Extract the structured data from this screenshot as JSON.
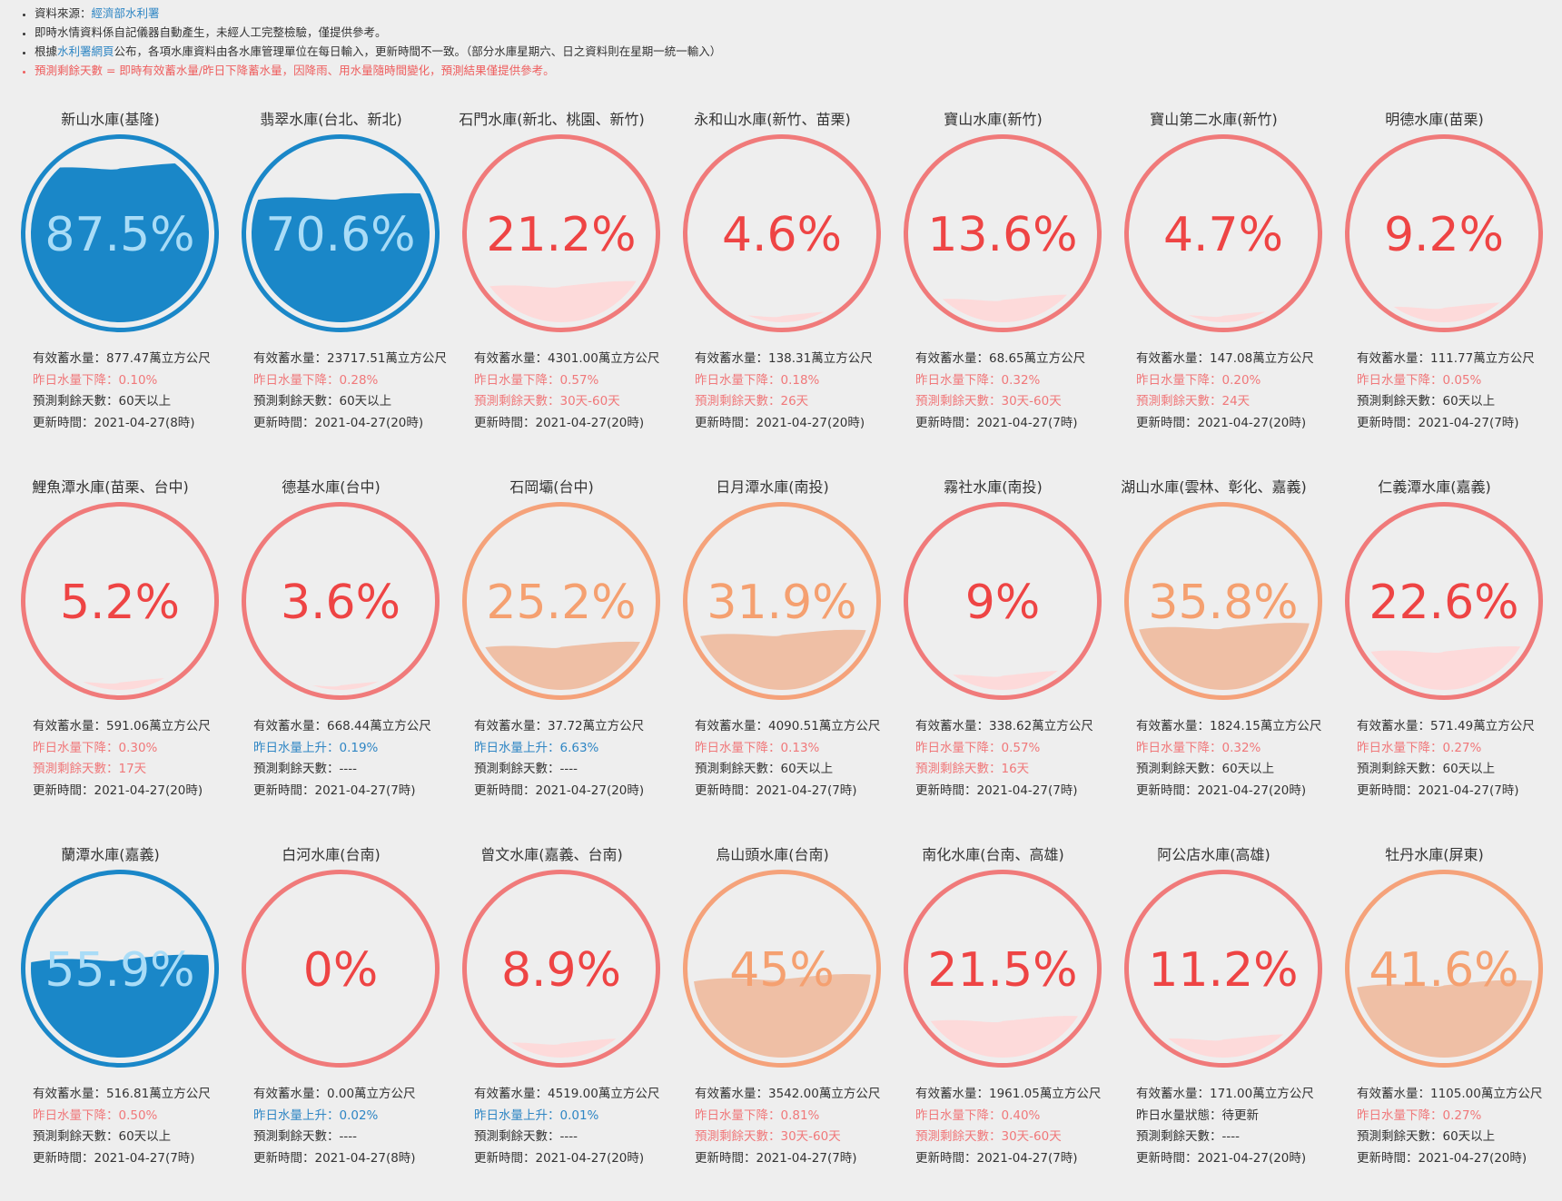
{
  "notes": {
    "source_label": "資料來源：",
    "source_link": "經濟部水利署",
    "line2": "即時水情資料係自記儀器自動產生，未經人工完整檢驗，僅提供參考。",
    "line3_pre": "根據",
    "line3_link": "水利署網頁",
    "line3_post": "公布，各項水庫資料由各水庫管理單位在每日輸入，更新時間不一致。（部分水庫星期六、日之資料則在星期一統一輸入）",
    "line4": "預測剩餘天數 = 即時有效蓄水量/昨日下降蓄水量，因降雨、用水量隨時間變化，預測結果僅提供參考。"
  },
  "colors": {
    "blue_fill": "#1a87c8",
    "blue_ring": "#1a87c8",
    "red_ring": "#f07a7a",
    "red_text": "#ee4444",
    "red_fill": "#fddada",
    "orange_ring": "#f5a27a",
    "orange_text": "#f5a070",
    "orange_fill": "#efbfa5",
    "light_blue_text": "#a9dcf7"
  },
  "reservoirs": [
    {
      "name": "新山水庫(基隆)",
      "percent": "87.5%",
      "level": 0.875,
      "theme": "blue",
      "storage": "有效蓄水量：877.47萬立方公尺",
      "change": "昨日水量下降：0.10%",
      "change_color": "red",
      "days": "預測剩餘天數：60天以上",
      "days_color": "normal",
      "updated": "更新時間：2021-04-27(8時)"
    },
    {
      "name": "翡翠水庫(台北、新北)",
      "percent": "70.6%",
      "level": 0.706,
      "theme": "blue",
      "storage": "有效蓄水量：23717.51萬立方公尺",
      "change": "昨日水量下降：0.28%",
      "change_color": "red",
      "days": "預測剩餘天數：60天以上",
      "days_color": "normal",
      "updated": "更新時間：2021-04-27(20時)"
    },
    {
      "name": "石門水庫(新北、桃園、新竹)",
      "percent": "21.2%",
      "level": 0.212,
      "theme": "red",
      "storage": "有效蓄水量：4301.00萬立方公尺",
      "change": "昨日水量下降：0.57%",
      "change_color": "red",
      "days": "預測剩餘天數：30天-60天",
      "days_color": "red",
      "updated": "更新時間：2021-04-27(20時)"
    },
    {
      "name": "永和山水庫(新竹、苗栗)",
      "percent": "4.6%",
      "level": 0.046,
      "theme": "red",
      "storage": "有效蓄水量：138.31萬立方公尺",
      "change": "昨日水量下降：0.18%",
      "change_color": "red",
      "days": "預測剩餘天數：26天",
      "days_color": "red",
      "updated": "更新時間：2021-04-27(20時)"
    },
    {
      "name": "寶山水庫(新竹)",
      "percent": "13.6%",
      "level": 0.136,
      "theme": "red",
      "storage": "有效蓄水量：68.65萬立方公尺",
      "change": "昨日水量下降：0.32%",
      "change_color": "red",
      "days": "預測剩餘天數：30天-60天",
      "days_color": "red",
      "updated": "更新時間：2021-04-27(7時)"
    },
    {
      "name": "寶山第二水庫(新竹)",
      "percent": "4.7%",
      "level": 0.047,
      "theme": "red",
      "storage": "有效蓄水量：147.08萬立方公尺",
      "change": "昨日水量下降：0.20%",
      "change_color": "red",
      "days": "預測剩餘天數：24天",
      "days_color": "red",
      "updated": "更新時間：2021-04-27(20時)"
    },
    {
      "name": "明德水庫(苗栗)",
      "percent": "9.2%",
      "level": 0.092,
      "theme": "red",
      "storage": "有效蓄水量：111.77萬立方公尺",
      "change": "昨日水量下降：0.05%",
      "change_color": "red",
      "days": "預測剩餘天數：60天以上",
      "days_color": "normal",
      "updated": "更新時間：2021-04-27(7時)"
    },
    {
      "name": "鯉魚潭水庫(苗栗、台中)",
      "percent": "5.2%",
      "level": 0.052,
      "theme": "red",
      "storage": "有效蓄水量：591.06萬立方公尺",
      "change": "昨日水量下降：0.30%",
      "change_color": "red",
      "days": "預測剩餘天數：17天",
      "days_color": "red",
      "updated": "更新時間：2021-04-27(20時)"
    },
    {
      "name": "德基水庫(台中)",
      "percent": "3.6%",
      "level": 0.036,
      "theme": "red",
      "storage": "有效蓄水量：668.44萬立方公尺",
      "change": "昨日水量上升：0.19%",
      "change_color": "blue",
      "days": "預測剩餘天數：----",
      "days_color": "normal",
      "updated": "更新時間：2021-04-27(7時)"
    },
    {
      "name": "石岡壩(台中)",
      "percent": "25.2%",
      "level": 0.252,
      "theme": "orange",
      "storage": "有效蓄水量：37.72萬立方公尺",
      "change": "昨日水量上升：6.63%",
      "change_color": "blue",
      "days": "預測剩餘天數：----",
      "days_color": "normal",
      "updated": "更新時間：2021-04-27(20時)"
    },
    {
      "name": "日月潭水庫(南投)",
      "percent": "31.9%",
      "level": 0.319,
      "theme": "orange",
      "storage": "有效蓄水量：4090.51萬立方公尺",
      "change": "昨日水量下降：0.13%",
      "change_color": "red",
      "days": "預測剩餘天數：60天以上",
      "days_color": "normal",
      "updated": "更新時間：2021-04-27(7時)"
    },
    {
      "name": "霧社水庫(南投)",
      "percent": "9%",
      "level": 0.09,
      "theme": "red",
      "storage": "有效蓄水量：338.62萬立方公尺",
      "change": "昨日水量下降：0.57%",
      "change_color": "red",
      "days": "預測剩餘天數：16天",
      "days_color": "red",
      "updated": "更新時間：2021-04-27(7時)"
    },
    {
      "name": "湖山水庫(雲林、彰化、嘉義)",
      "percent": "35.8%",
      "level": 0.358,
      "theme": "orange",
      "storage": "有效蓄水量：1824.15萬立方公尺",
      "change": "昨日水量下降：0.32%",
      "change_color": "red",
      "days": "預測剩餘天數：60天以上",
      "days_color": "normal",
      "updated": "更新時間：2021-04-27(20時)"
    },
    {
      "name": "仁義潭水庫(嘉義)",
      "percent": "22.6%",
      "level": 0.226,
      "theme": "red",
      "storage": "有效蓄水量：571.49萬立方公尺",
      "change": "昨日水量下降：0.27%",
      "change_color": "red",
      "days": "預測剩餘天數：60天以上",
      "days_color": "normal",
      "updated": "更新時間：2021-04-27(7時)"
    },
    {
      "name": "蘭潭水庫(嘉義)",
      "percent": "55.9%",
      "level": 0.559,
      "theme": "blue",
      "storage": "有效蓄水量：516.81萬立方公尺",
      "change": "昨日水量下降：0.50%",
      "change_color": "red",
      "days": "預測剩餘天數：60天以上",
      "days_color": "normal",
      "updated": "更新時間：2021-04-27(7時)"
    },
    {
      "name": "白河水庫(台南)",
      "percent": "0%",
      "level": 0.0,
      "theme": "red",
      "storage": "有效蓄水量：0.00萬立方公尺",
      "change": "昨日水量上升：0.02%",
      "change_color": "blue",
      "days": "預測剩餘天數：----",
      "days_color": "normal",
      "updated": "更新時間：2021-04-27(8時)"
    },
    {
      "name": "曾文水庫(嘉義、台南)",
      "percent": "8.9%",
      "level": 0.089,
      "theme": "red",
      "storage": "有效蓄水量：4519.00萬立方公尺",
      "change": "昨日水量上升：0.01%",
      "change_color": "blue",
      "days": "預測剩餘天數：----",
      "days_color": "normal",
      "updated": "更新時間：2021-04-27(20時)"
    },
    {
      "name": "烏山頭水庫(台南)",
      "percent": "45%",
      "level": 0.45,
      "theme": "orange",
      "storage": "有效蓄水量：3542.00萬立方公尺",
      "change": "昨日水量下降：0.81%",
      "change_color": "red",
      "days": "預測剩餘天數：30天-60天",
      "days_color": "red",
      "updated": "更新時間：2021-04-27(7時)"
    },
    {
      "name": "南化水庫(台南、高雄)",
      "percent": "21.5%",
      "level": 0.215,
      "theme": "red",
      "storage": "有效蓄水量：1961.05萬立方公尺",
      "change": "昨日水量下降：0.40%",
      "change_color": "red",
      "days": "預測剩餘天數：30天-60天",
      "days_color": "red",
      "updated": "更新時間：2021-04-27(7時)"
    },
    {
      "name": "阿公店水庫(高雄)",
      "percent": "11.2%",
      "level": 0.112,
      "theme": "red",
      "storage": "有效蓄水量：171.00萬立方公尺",
      "change": "昨日水量狀態：待更新",
      "change_color": "normal",
      "days": "預測剩餘天數：----",
      "days_color": "normal",
      "updated": "更新時間：2021-04-27(20時)"
    },
    {
      "name": "牡丹水庫(屏東)",
      "percent": "41.6%",
      "level": 0.416,
      "theme": "orange",
      "storage": "有效蓄水量：1105.00萬立方公尺",
      "change": "昨日水量下降：0.27%",
      "change_color": "red",
      "days": "預測剩餘天數：60天以上",
      "days_color": "normal",
      "updated": "更新時間：2021-04-27(20時)"
    }
  ]
}
